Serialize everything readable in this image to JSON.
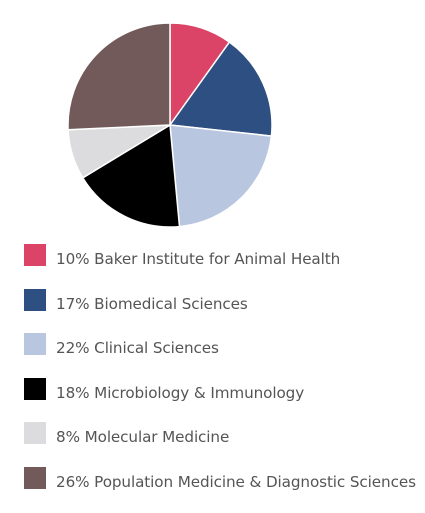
{
  "chart_data": {
    "type": "pie",
    "title": "",
    "slices": [
      {
        "label": "10% Baker Institute for Animal Health",
        "value": 10,
        "color": "#db4466"
      },
      {
        "label": "17% Biomedical Sciences",
        "value": 17,
        "color": "#2e4f81"
      },
      {
        "label": "22% Clinical Sciences",
        "value": 22,
        "color": "#b8c6df"
      },
      {
        "label": "18% Microbiology & Immunology",
        "value": 18,
        "color": "#000000"
      },
      {
        "label": "8% Molecular Medicine",
        "value": 8,
        "color": "#dcdcdf"
      },
      {
        "label": "26% Population Medicine & Diagnostic Sciences",
        "value": 26,
        "color": "#735a5a"
      }
    ],
    "start_angle_deg": 0,
    "direction": "clockwise",
    "legend": {
      "position": "bottom"
    },
    "slice_border_color": "#ffffff"
  }
}
